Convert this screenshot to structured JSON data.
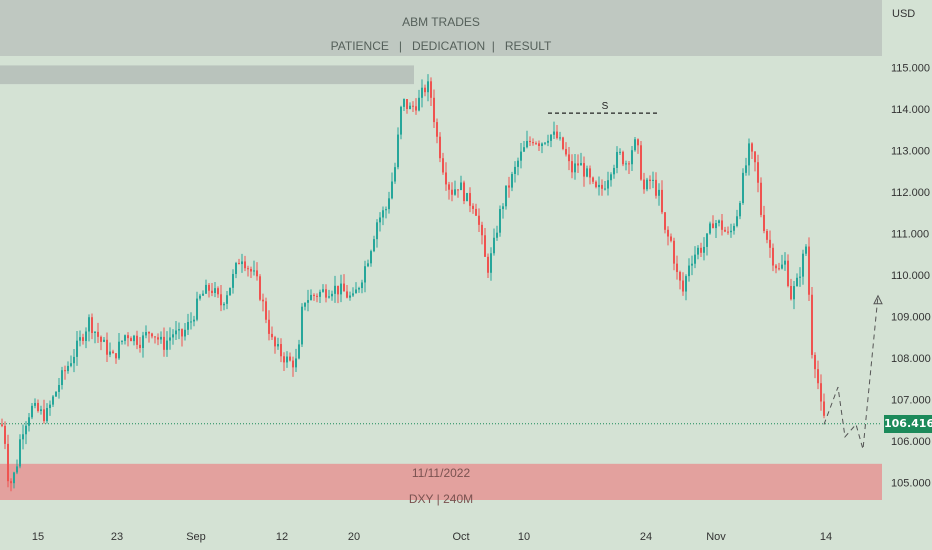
{
  "header": {
    "title": "ABM TRADES",
    "subtitle": "PATIENCE   |   DEDICATION  |   RESULT"
  },
  "footer_zone": {
    "line1": "11/11/2022",
    "line2": "DXY | 240M"
  },
  "colors": {
    "background": "#d4e2d4",
    "up": "#26a69a",
    "down": "#ef5350",
    "banner": "#bfc8c1",
    "demand_zone": "#e3a19e",
    "axis_text": "#333333"
  },
  "chart_data": {
    "type": "candlestick",
    "currency": "USD",
    "ylim": [
      104.6,
      116.0
    ],
    "y_ticks": [
      "105.000",
      "106.000",
      "107.000",
      "108.000",
      "109.000",
      "110.000",
      "111.000",
      "112.000",
      "113.000",
      "114.000",
      "115.000"
    ],
    "x_ticks": [
      "15",
      "23",
      "Sep",
      "12",
      "20",
      "Oct",
      "10",
      "24",
      "Nov",
      "14"
    ],
    "current_price": "106.416",
    "marker_label": "S",
    "marker_level": 113.9,
    "supply_zone": [
      114.6,
      115.05
    ],
    "demand_zone": [
      104.6,
      105.45
    ],
    "swing_closes": [
      [
        0,
        106.4
      ],
      [
        3,
        106.3
      ],
      [
        8,
        104.9
      ],
      [
        15,
        105.3
      ],
      [
        20,
        106.2
      ],
      [
        30,
        106.8
      ],
      [
        45,
        106.6
      ],
      [
        60,
        107.5
      ],
      [
        75,
        108.2
      ],
      [
        88,
        108.9
      ],
      [
        100,
        108.4
      ],
      [
        112,
        108.0
      ],
      [
        125,
        108.6
      ],
      [
        140,
        108.4
      ],
      [
        150,
        108.7
      ],
      [
        162,
        108.3
      ],
      [
        172,
        108.6
      ],
      [
        180,
        108.5
      ],
      [
        190,
        108.9
      ],
      [
        200,
        109.5
      ],
      [
        210,
        109.7
      ],
      [
        220,
        109.3
      ],
      [
        230,
        109.8
      ],
      [
        240,
        110.5
      ],
      [
        247,
        110.2
      ],
      [
        255,
        109.9
      ],
      [
        263,
        109.2
      ],
      [
        272,
        108.3
      ],
      [
        280,
        108.1
      ],
      [
        288,
        107.9
      ],
      [
        297,
        107.9
      ],
      [
        302,
        109.4
      ],
      [
        312,
        109.5
      ],
      [
        322,
        109.6
      ],
      [
        332,
        109.7
      ],
      [
        342,
        109.6
      ],
      [
        352,
        109.4
      ],
      [
        360,
        109.9
      ],
      [
        368,
        110.5
      ],
      [
        376,
        111.3
      ],
      [
        385,
        111.6
      ],
      [
        394,
        112.6
      ],
      [
        401,
        114.2
      ],
      [
        409,
        114.0
      ],
      [
        418,
        114.2
      ],
      [
        426,
        114.6
      ],
      [
        430,
        114.3
      ],
      [
        436,
        113.3
      ],
      [
        443,
        112.5
      ],
      [
        450,
        112.0
      ],
      [
        458,
        112.2
      ],
      [
        466,
        111.8
      ],
      [
        474,
        111.7
      ],
      [
        481,
        110.8
      ],
      [
        486,
        110.1
      ],
      [
        492,
        110.6
      ],
      [
        498,
        111.4
      ],
      [
        505,
        112.0
      ],
      [
        512,
        112.4
      ],
      [
        518,
        112.8
      ],
      [
        525,
        113.1
      ],
      [
        532,
        113.3
      ],
      [
        540,
        113.2
      ],
      [
        548,
        113.4
      ],
      [
        556,
        113.3
      ],
      [
        563,
        113.0
      ],
      [
        570,
        112.5
      ],
      [
        578,
        112.7
      ],
      [
        586,
        112.4
      ],
      [
        594,
        112.0
      ],
      [
        602,
        112.1
      ],
      [
        610,
        112.6
      ],
      [
        618,
        112.9
      ],
      [
        626,
        112.7
      ],
      [
        633,
        113.2
      ],
      [
        638,
        112.9
      ],
      [
        642,
        112.0
      ],
      [
        650,
        112.3
      ],
      [
        658,
        111.9
      ],
      [
        664,
        111.0
      ],
      [
        670,
        110.8
      ],
      [
        676,
        110.0
      ],
      [
        682,
        109.6
      ],
      [
        688,
        110.3
      ],
      [
        696,
        110.6
      ],
      [
        704,
        110.7
      ],
      [
        712,
        111.3
      ],
      [
        720,
        111.2
      ],
      [
        728,
        110.9
      ],
      [
        736,
        111.5
      ],
      [
        742,
        112.3
      ],
      [
        748,
        113.0
      ],
      [
        755,
        112.6
      ],
      [
        760,
        111.5
      ],
      [
        766,
        110.9
      ],
      [
        772,
        110.4
      ],
      [
        778,
        110.1
      ],
      [
        784,
        110.3
      ],
      [
        790,
        109.5
      ],
      [
        796,
        109.8
      ],
      [
        802,
        110.4
      ],
      [
        806,
        110.8
      ],
      [
        810,
        108.3
      ],
      [
        815,
        107.8
      ],
      [
        820,
        106.8
      ],
      [
        824,
        106.4
      ]
    ],
    "projection": [
      [
        824,
        106.4
      ],
      [
        838,
        107.3
      ],
      [
        845,
        106.1
      ],
      [
        856,
        106.4
      ],
      [
        863,
        105.8
      ],
      [
        878,
        109.5
      ]
    ]
  }
}
